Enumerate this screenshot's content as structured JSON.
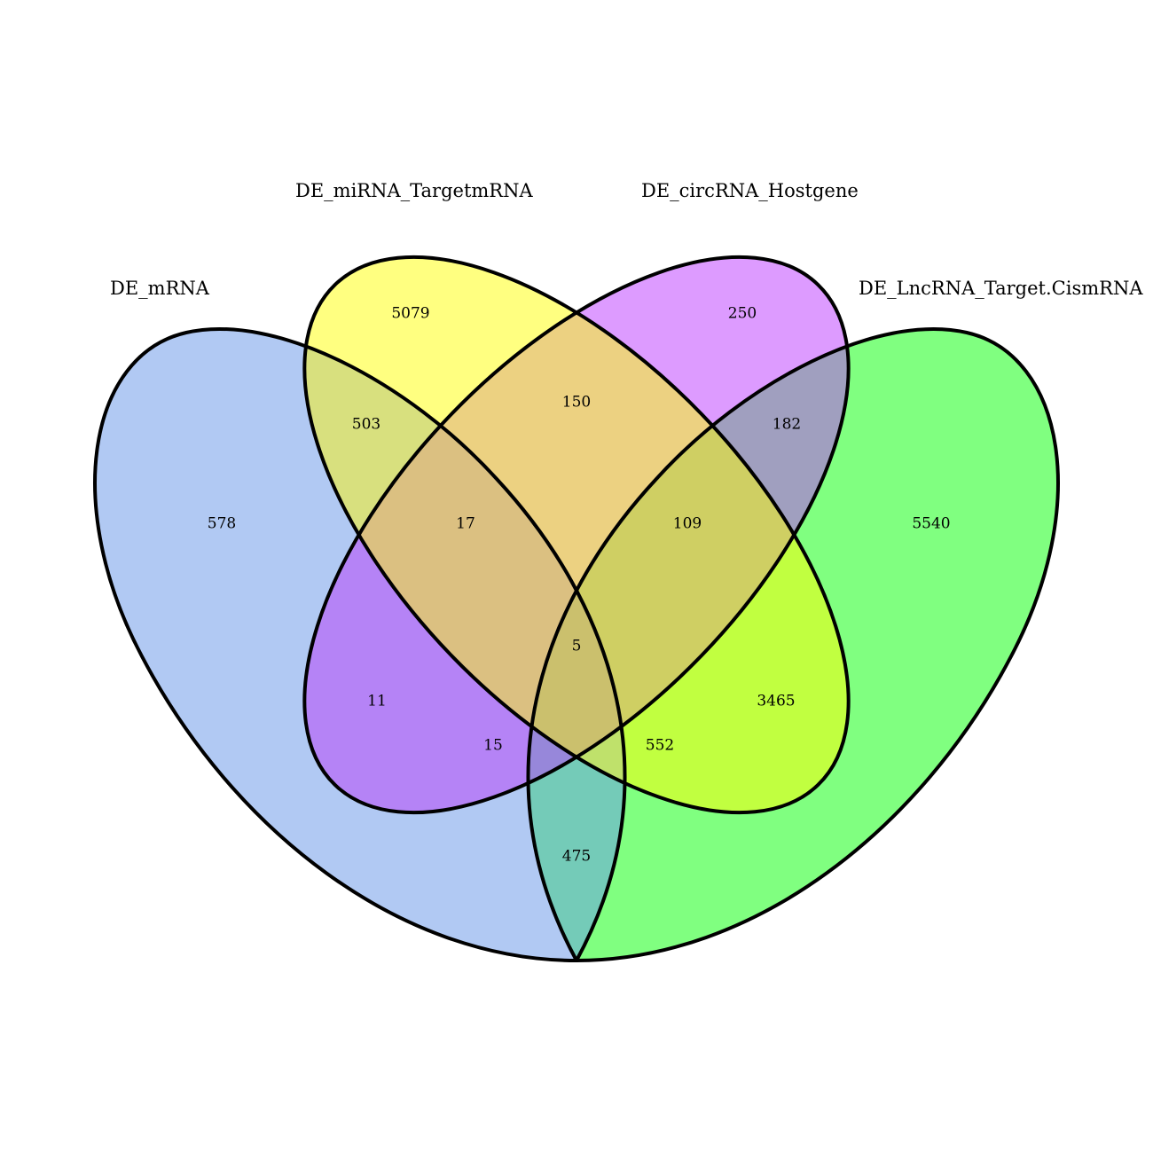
{
  "sets": [
    {
      "id": "mrna",
      "label": "DE_mRNA",
      "color": "#b1c9f3"
    },
    {
      "id": "mirna",
      "label": "DE_miRNA_TargetmRNA",
      "color": "#ffff80"
    },
    {
      "id": "circ",
      "label": "DE_circRNA_Hostgene",
      "color": "#dd9bff"
    },
    {
      "id": "lnc",
      "label": "DE_LncRNA_Target.CismRNA",
      "color": "#80ff80"
    }
  ],
  "regions": {
    "mrna_only": "578",
    "mirna_only": "5079",
    "circ_only": "250",
    "lnc_only": "5540",
    "mrna_mirna": "503",
    "mirna_circ": "150",
    "circ_lnc": "182",
    "mrna_mirna_circ": "17",
    "mirna_circ_lnc": "109",
    "all_four": "5",
    "mrna_circ": "11",
    "mirna_lnc": "3465",
    "mrna_circ_lnc": "15",
    "mrna_mirna_lnc": "552",
    "mrna_lnc": "475"
  },
  "region_colors": {
    "mrna_mirna": "#d8e07e",
    "mirna_circ": "#ecd181",
    "circ_lnc": "#a09fbf",
    "mrna_mirna_circ": "#dbc081",
    "mirna_circ_lnc": "#cfcf63",
    "all_four": "#cbc06d",
    "mrna_circ": "#b583f6",
    "mirna_lnc": "#c1ff40",
    "mrna_circ_lnc": "#9787da",
    "mrna_mirna_lnc": "#bfe16b",
    "mrna_lnc": "#74cbb8"
  }
}
